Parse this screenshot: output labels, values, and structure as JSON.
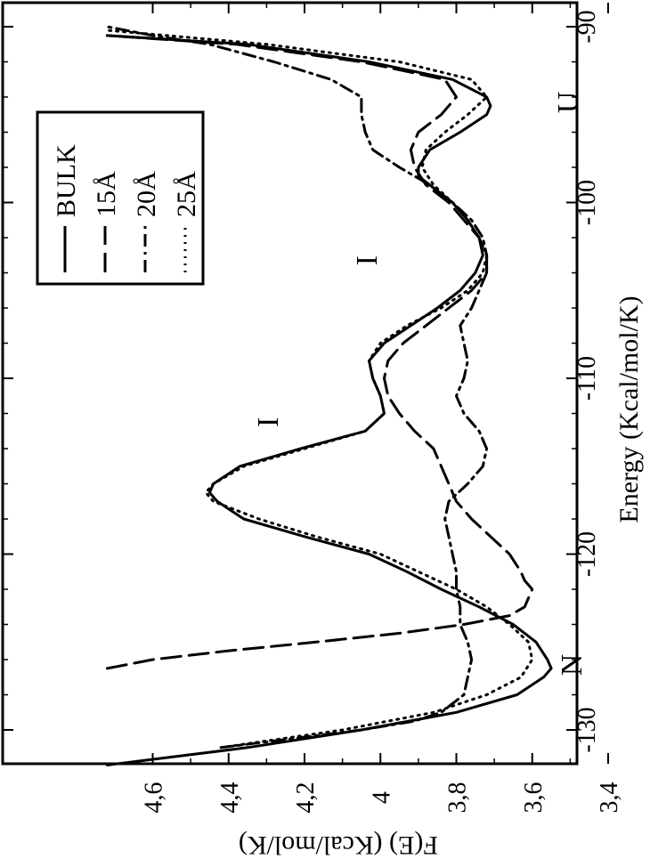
{
  "chart_data": {
    "type": "line",
    "title": "",
    "xlabel": "Energy (Kcal/mol/K)",
    "ylabel": "F(E) (Kcal/mol/K)",
    "xlim": [
      -132,
      -89
    ],
    "ylim": [
      3.28,
      4.72
    ],
    "grid": false,
    "legend_position": "top-right",
    "orientation_note": "figure rotated 90 degrees clockwise",
    "x_ticks": [
      -130,
      -120,
      -110,
      -100,
      -90
    ],
    "x_tick_labels": [
      "-130",
      "-120",
      "-110",
      "-100",
      "-90"
    ],
    "y_ticks": [
      3.4,
      3.6,
      3.8,
      4.0,
      4.2,
      4.4,
      4.6
    ],
    "y_tick_labels": [
      "3,4",
      "3,6",
      "3,8",
      "4",
      "4,2",
      "4,4",
      "4,6"
    ],
    "series": [
      {
        "name": "BULK",
        "style": "solid",
        "x": [
          -132,
          -131,
          -130,
          -129,
          -128,
          -127,
          -126.5,
          -126,
          -125,
          -124,
          -123,
          -122,
          -121,
          -120,
          -119,
          -118,
          -117,
          -116.5,
          -116,
          -115,
          -114,
          -113,
          -112,
          -111,
          -110,
          -109,
          -108,
          -107,
          -106,
          -105,
          -104,
          -103,
          -102,
          -101,
          -100,
          -99,
          -98.5,
          -98,
          -97,
          -96,
          -95,
          -94.5,
          -94,
          -93,
          -92,
          -91,
          -90.5
        ],
        "y": [
          4.72,
          4.35,
          4.05,
          3.8,
          3.64,
          3.57,
          3.55,
          3.56,
          3.59,
          3.65,
          3.74,
          3.84,
          3.93,
          4.03,
          4.2,
          4.36,
          4.43,
          4.45,
          4.44,
          4.37,
          4.21,
          4.04,
          3.99,
          4.0,
          4.02,
          4.03,
          3.99,
          3.92,
          3.85,
          3.79,
          3.75,
          3.73,
          3.74,
          3.77,
          3.81,
          3.87,
          3.9,
          3.9,
          3.87,
          3.79,
          3.72,
          3.71,
          3.72,
          3.81,
          4.03,
          4.35,
          4.72
        ]
      },
      {
        "name": "15Å",
        "style": "dashed",
        "x": [
          -126.5,
          -126,
          -125.5,
          -125,
          -124.5,
          -124,
          -123.5,
          -123,
          -122.5,
          -122,
          -121.5,
          -121,
          -120,
          -119,
          -118,
          -117,
          -116,
          -115,
          -114,
          -113,
          -112,
          -111,
          -110,
          -109,
          -108,
          -107,
          -106,
          -105,
          -104,
          -103,
          -102,
          -101,
          -100,
          -99,
          -98,
          -97,
          -96,
          -95,
          -94,
          -93,
          -92,
          -91,
          -90.5
        ],
        "y": [
          4.72,
          4.6,
          4.4,
          4.17,
          3.95,
          3.78,
          3.66,
          3.62,
          3.61,
          3.6,
          3.62,
          3.63,
          3.66,
          3.71,
          3.76,
          3.8,
          3.82,
          3.84,
          3.86,
          3.91,
          3.95,
          3.98,
          3.99,
          3.98,
          3.94,
          3.88,
          3.82,
          3.76,
          3.72,
          3.72,
          3.74,
          3.78,
          3.82,
          3.88,
          3.91,
          3.92,
          3.9,
          3.84,
          3.8,
          3.83,
          4.05,
          4.38,
          4.72
        ]
      },
      {
        "name": "20Å",
        "style": "dashdot",
        "x": [
          -131,
          -130,
          -129.5,
          -129,
          -128,
          -127,
          -126,
          -125,
          -124,
          -123,
          -122,
          -121,
          -120,
          -119,
          -118,
          -117,
          -116,
          -115,
          -114,
          -113,
          -112,
          -111,
          -110,
          -109,
          -108,
          -107,
          -106,
          -105,
          -104,
          -103,
          -102,
          -101,
          -100,
          -99,
          -98,
          -97,
          -96,
          -95,
          -94,
          -93,
          -92,
          -91,
          -90.5,
          -90
        ],
        "y": [
          4.42,
          4.05,
          3.91,
          3.84,
          3.78,
          3.77,
          3.76,
          3.77,
          3.79,
          3.79,
          3.8,
          3.8,
          3.81,
          3.82,
          3.83,
          3.82,
          3.77,
          3.73,
          3.72,
          3.74,
          3.78,
          3.8,
          3.78,
          3.77,
          3.78,
          3.79,
          3.76,
          3.74,
          3.72,
          3.72,
          3.73,
          3.76,
          3.81,
          3.87,
          3.95,
          4.02,
          4.04,
          4.05,
          4.05,
          4.13,
          4.28,
          4.45,
          4.6,
          4.72
        ]
      },
      {
        "name": "25Å",
        "style": "dotted",
        "x": [
          -131,
          -130,
          -129,
          -128,
          -127,
          -126,
          -125,
          -124,
          -123,
          -122,
          -121,
          -120,
          -119,
          -118,
          -117,
          -116.5,
          -116,
          -115,
          -114,
          -113,
          -112,
          -111,
          -110,
          -109,
          -108,
          -107,
          -106,
          -105,
          -104,
          -103,
          -102,
          -101,
          -100,
          -99,
          -98,
          -97,
          -96,
          -95,
          -94,
          -93,
          -92,
          -91,
          -90.2
        ],
        "y": [
          4.42,
          4.1,
          3.86,
          3.72,
          3.63,
          3.6,
          3.61,
          3.66,
          3.72,
          3.8,
          3.9,
          4.0,
          4.17,
          4.32,
          4.44,
          4.46,
          4.44,
          4.36,
          4.2,
          4.04,
          3.99,
          4.0,
          4.02,
          4.03,
          4.0,
          3.93,
          3.84,
          3.77,
          3.73,
          3.72,
          3.74,
          3.77,
          3.81,
          3.86,
          3.89,
          3.88,
          3.83,
          3.77,
          3.72,
          3.76,
          3.95,
          4.3,
          4.72
        ]
      }
    ],
    "annotations": [
      {
        "text": "N",
        "x": -126.3,
        "y": 3.47
      },
      {
        "text": "I",
        "x": -112.5,
        "y": 4.27
      },
      {
        "text": "I",
        "x": -103.3,
        "y": 4.01
      },
      {
        "text": "U",
        "x": -94.3,
        "y": 3.48
      }
    ]
  }
}
